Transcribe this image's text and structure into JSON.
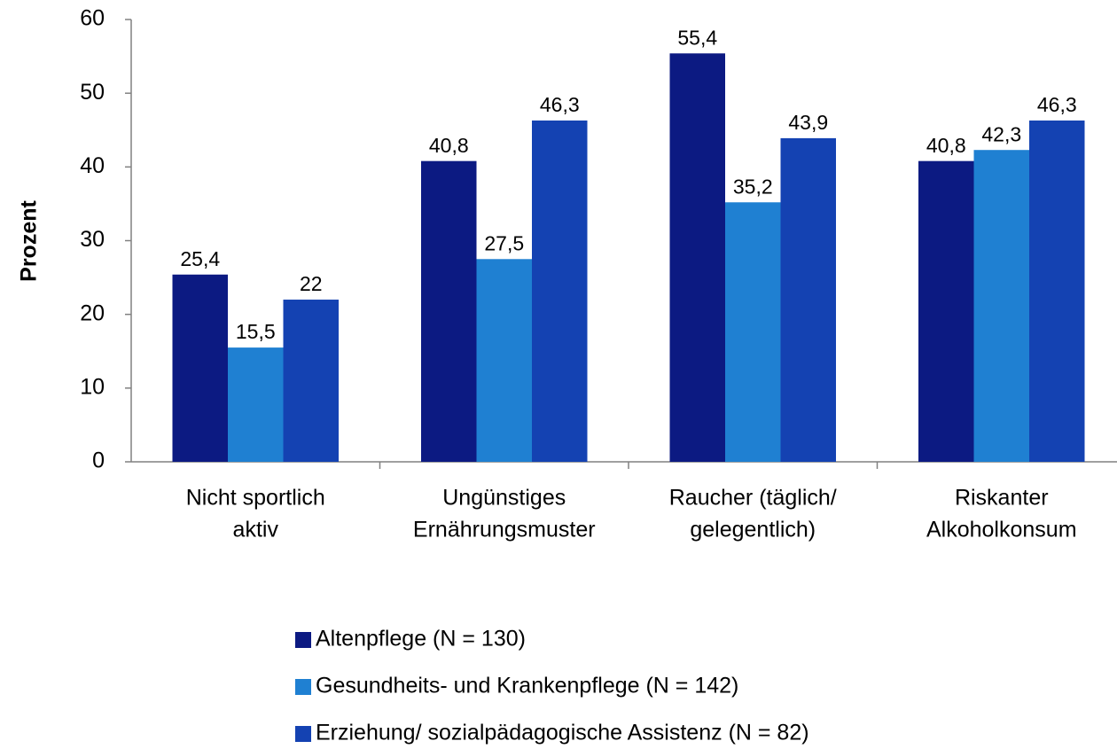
{
  "chart_data": {
    "type": "bar",
    "y_label": "Prozent",
    "categories": [
      [
        "Nicht sportlich",
        "aktiv"
      ],
      [
        "Ungünstiges",
        "Ernährungsmuster"
      ],
      [
        "Raucher (täglich/",
        "gelegentlich)"
      ],
      [
        "Riskanter",
        "Alkoholkonsum"
      ]
    ],
    "series": [
      {
        "name": "Altenpflege (N = 130)",
        "color": "#0c1a82",
        "values": [
          25.4,
          40.8,
          55.4,
          40.8
        ],
        "value_labels": [
          "25,4",
          "40,8",
          "55,4",
          "40,8"
        ]
      },
      {
        "name": "Gesundheits- und Krankenpflege (N = 142)",
        "color": "#1f80d2",
        "values": [
          15.5,
          27.5,
          35.2,
          42.3
        ],
        "value_labels": [
          "15,5",
          "27,5",
          "35,2",
          "42,3"
        ]
      },
      {
        "name": "Erziehung/ sozialpädagogische Assistenz (N = 82)",
        "color": "#1442b2",
        "values": [
          22,
          46.3,
          43.9,
          46.3
        ],
        "value_labels": [
          "22",
          "46,3",
          "43,9",
          "46,3"
        ]
      }
    ],
    "ylim": [
      0,
      60
    ],
    "yticks": [
      0,
      10,
      20,
      30,
      40,
      50,
      60
    ],
    "grid": false
  }
}
